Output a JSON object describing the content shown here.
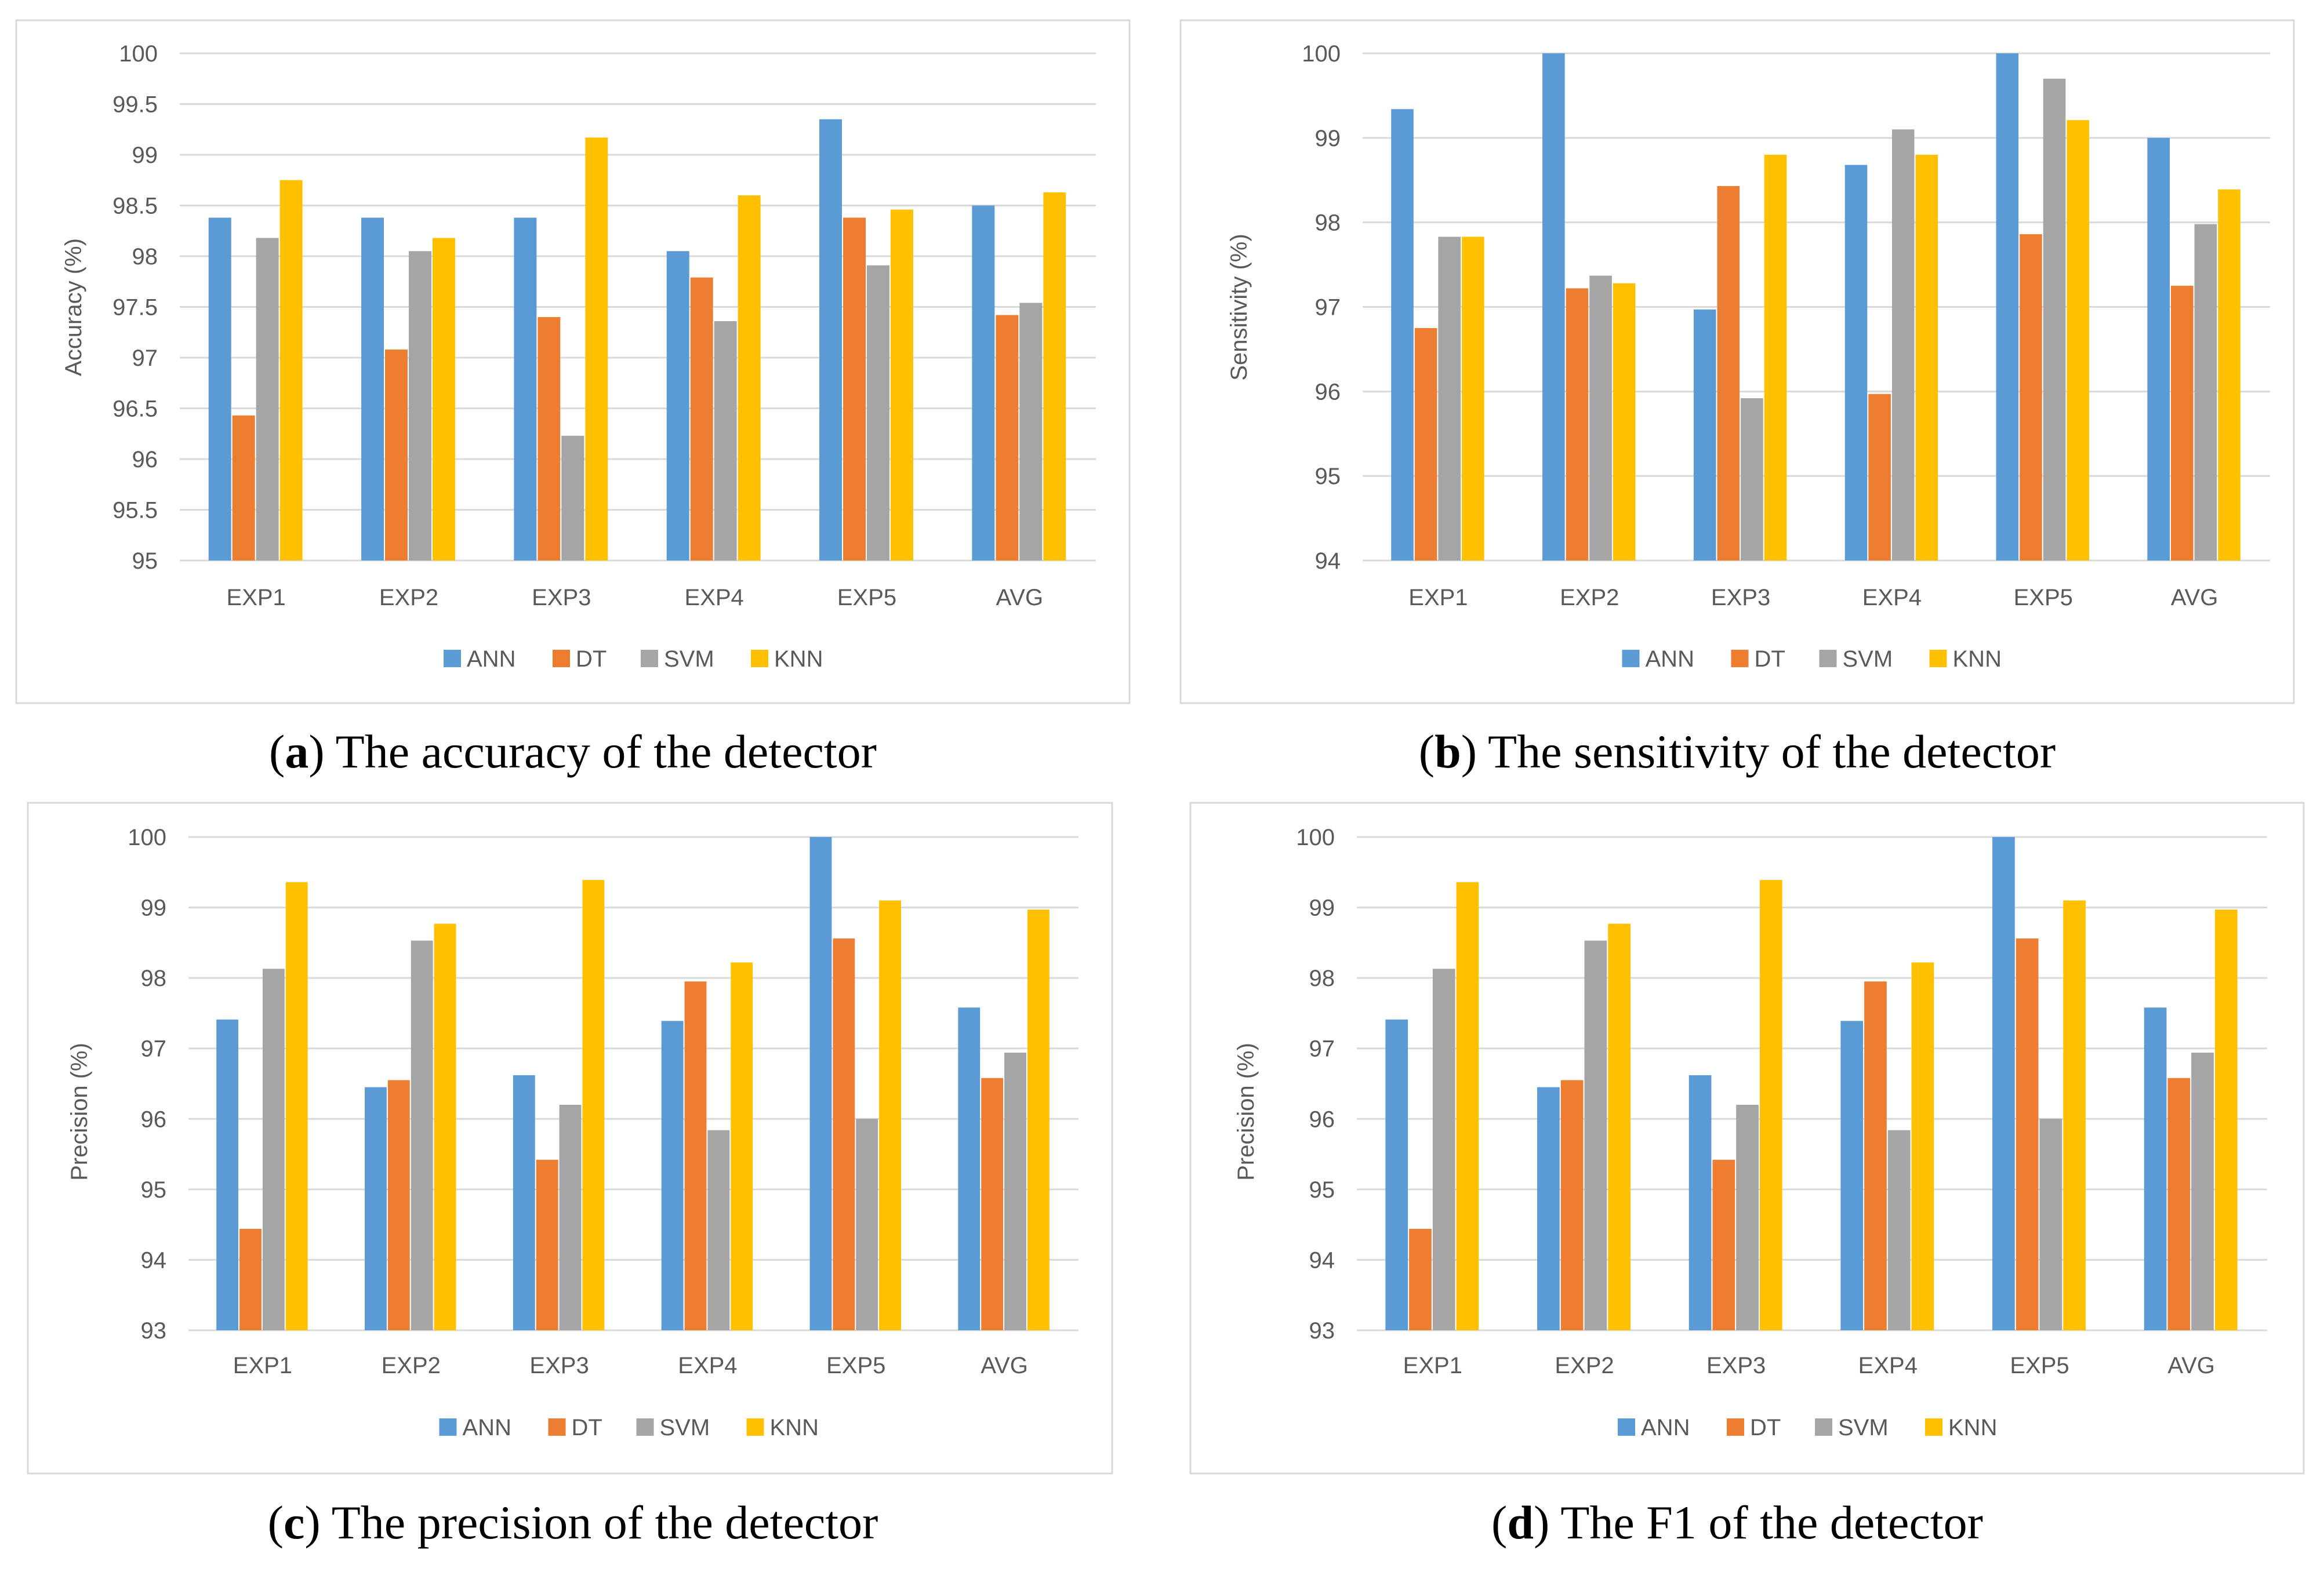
{
  "legend": [
    {
      "name": "ANN",
      "color": "#5b9bd5"
    },
    {
      "name": "DT",
      "color": "#ed7d31"
    },
    {
      "name": "SVM",
      "color": "#a5a5a5"
    },
    {
      "name": "KNN",
      "color": "#ffc000"
    }
  ],
  "chart_data": [
    {
      "type": "bar",
      "title": "",
      "caption": {
        "letter": "a",
        "text": "The accuracy of the detector"
      },
      "xlabel": "",
      "ylabel": "Accuracy (%)",
      "ylim": [
        95,
        100
      ],
      "yticks": [
        "95",
        "95.5",
        "96",
        "96.5",
        "97",
        "97.5",
        "98",
        "98.5",
        "99",
        "99.5",
        "100"
      ],
      "ytick_values": [
        95,
        95.5,
        96,
        96.5,
        97,
        97.5,
        98,
        98.5,
        99,
        99.5,
        100
      ],
      "categories": [
        "EXP1",
        "EXP2",
        "EXP3",
        "EXP4",
        "EXP5",
        "AVG"
      ],
      "series": [
        {
          "name": "ANN",
          "values": [
            98.38,
            98.38,
            98.38,
            98.05,
            99.35,
            98.5
          ]
        },
        {
          "name": "DT",
          "values": [
            96.43,
            97.08,
            97.4,
            97.79,
            98.38,
            97.42
          ]
        },
        {
          "name": "SVM",
          "values": [
            98.18,
            98.05,
            96.23,
            97.36,
            97.91,
            97.54
          ]
        },
        {
          "name": "KNN",
          "values": [
            98.75,
            98.18,
            99.17,
            98.6,
            98.46,
            98.63
          ]
        }
      ],
      "legend_position": "bottom"
    },
    {
      "type": "bar",
      "title": "",
      "caption": {
        "letter": "b",
        "text": "The sensitivity of the detector"
      },
      "xlabel": "",
      "ylabel": "Sensitivity (%)",
      "ylim": [
        94,
        100
      ],
      "yticks": [
        "94",
        "95",
        "96",
        "97",
        "98",
        "99",
        "100"
      ],
      "ytick_values": [
        94,
        95,
        96,
        97,
        98,
        99,
        100
      ],
      "categories": [
        "EXP1",
        "EXP2",
        "EXP3",
        "EXP4",
        "EXP5",
        "AVG"
      ],
      "series": [
        {
          "name": "ANN",
          "values": [
            99.34,
            100,
            96.97,
            98.68,
            100,
            99.0
          ]
        },
        {
          "name": "DT",
          "values": [
            96.75,
            97.22,
            98.43,
            95.97,
            97.86,
            97.25
          ]
        },
        {
          "name": "SVM",
          "values": [
            97.83,
            97.37,
            95.92,
            99.1,
            99.7,
            97.98
          ]
        },
        {
          "name": "KNN",
          "values": [
            97.83,
            97.28,
            98.8,
            98.8,
            99.21,
            98.39
          ]
        }
      ],
      "legend_position": "bottom"
    },
    {
      "type": "bar",
      "title": "",
      "caption": {
        "letter": "c",
        "text": "The precision of the detector"
      },
      "xlabel": "",
      "ylabel": "Precision (%)",
      "ylim": [
        93,
        100
      ],
      "yticks": [
        "93",
        "94",
        "95",
        "96",
        "97",
        "98",
        "99",
        "100"
      ],
      "ytick_values": [
        93,
        94,
        95,
        96,
        97,
        98,
        99,
        100
      ],
      "categories": [
        "EXP1",
        "EXP2",
        "EXP3",
        "EXP4",
        "EXP5",
        "AVG"
      ],
      "series": [
        {
          "name": "ANN",
          "values": [
            97.41,
            96.45,
            96.62,
            97.39,
            100,
            97.58
          ]
        },
        {
          "name": "DT",
          "values": [
            94.44,
            96.55,
            95.42,
            97.95,
            98.56,
            96.58
          ]
        },
        {
          "name": "SVM",
          "values": [
            98.13,
            98.53,
            96.2,
            95.84,
            96.0,
            96.94
          ]
        },
        {
          "name": "KNN",
          "values": [
            99.36,
            98.77,
            99.39,
            98.22,
            99.1,
            98.97
          ]
        }
      ],
      "legend_position": "bottom"
    },
    {
      "type": "bar",
      "title": "",
      "caption": {
        "letter": "d",
        "text": "The F1 of the detector"
      },
      "xlabel": "",
      "ylabel": "Precision (%)",
      "ylim": [
        93,
        100
      ],
      "yticks": [
        "93",
        "94",
        "95",
        "96",
        "97",
        "98",
        "99",
        "100"
      ],
      "ytick_values": [
        93,
        94,
        95,
        96,
        97,
        98,
        99,
        100
      ],
      "categories": [
        "EXP1",
        "EXP2",
        "EXP3",
        "EXP4",
        "EXP5",
        "AVG"
      ],
      "series": [
        {
          "name": "ANN",
          "values": [
            97.41,
            96.45,
            96.62,
            97.39,
            100,
            97.58
          ]
        },
        {
          "name": "DT",
          "values": [
            94.44,
            96.55,
            95.42,
            97.95,
            98.56,
            96.58
          ]
        },
        {
          "name": "SVM",
          "values": [
            98.13,
            98.53,
            96.2,
            95.84,
            96.0,
            96.94
          ]
        },
        {
          "name": "KNN",
          "values": [
            99.36,
            98.77,
            99.39,
            98.22,
            99.1,
            98.97
          ]
        }
      ],
      "legend_position": "bottom"
    }
  ]
}
